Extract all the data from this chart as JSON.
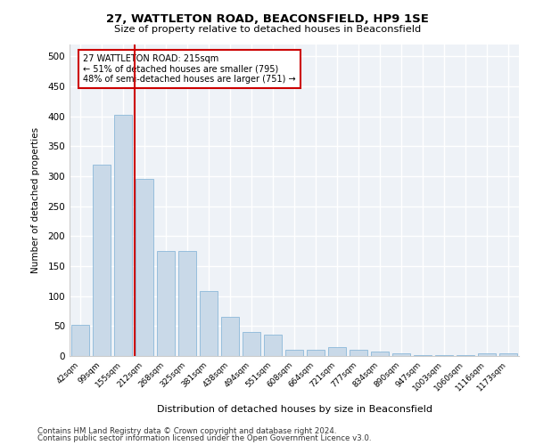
{
  "title1": "27, WATTLETON ROAD, BEACONSFIELD, HP9 1SE",
  "title2": "Size of property relative to detached houses in Beaconsfield",
  "xlabel": "Distribution of detached houses by size in Beaconsfield",
  "ylabel": "Number of detached properties",
  "footer1": "Contains HM Land Registry data © Crown copyright and database right 2024.",
  "footer2": "Contains public sector information licensed under the Open Government Licence v3.0.",
  "annotation_line1": "27 WATTLETON ROAD: 215sqm",
  "annotation_line2": "← 51% of detached houses are smaller (795)",
  "annotation_line3": "48% of semi-detached houses are larger (751) →",
  "bar_color": "#c9d9e8",
  "bar_edge_color": "#7bafd4",
  "marker_color": "#cc0000",
  "red_line_x": 2.55,
  "categories": [
    "42sqm",
    "99sqm",
    "155sqm",
    "212sqm",
    "268sqm",
    "325sqm",
    "381sqm",
    "438sqm",
    "494sqm",
    "551sqm",
    "608sqm",
    "664sqm",
    "721sqm",
    "777sqm",
    "834sqm",
    "890sqm",
    "947sqm",
    "1003sqm",
    "1060sqm",
    "1116sqm",
    "1173sqm"
  ],
  "values": [
    52,
    320,
    402,
    296,
    175,
    175,
    108,
    65,
    40,
    36,
    10,
    10,
    15,
    10,
    8,
    5,
    2,
    2,
    1,
    5,
    5
  ],
  "ylim": [
    0,
    520
  ],
  "yticks": [
    0,
    50,
    100,
    150,
    200,
    250,
    300,
    350,
    400,
    450,
    500
  ],
  "bg_color": "#eef2f7"
}
